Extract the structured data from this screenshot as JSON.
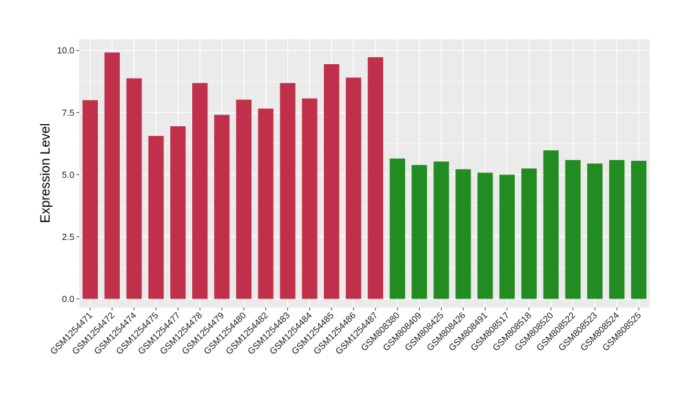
{
  "chart_data": {
    "type": "bar",
    "ylabel": "Expression Level",
    "xlabel": "",
    "ylim": [
      -0.35,
      10.45
    ],
    "yticks": [
      0.0,
      2.5,
      5.0,
      7.5,
      10.0
    ],
    "ytick_labels": [
      "0.0",
      "2.5",
      "5.0",
      "7.5",
      "10.0"
    ],
    "grid": true,
    "legend": "none",
    "colors": {
      "group_a": "#c0304a",
      "group_b": "#228b22",
      "panel": "#ebebeb",
      "grid": "#ffffff"
    },
    "categories": [
      "GSM1254471",
      "GSM1254472",
      "GSM1254474",
      "GSM1254475",
      "GSM1254477",
      "GSM1254478",
      "GSM1254479",
      "GSM1254480",
      "GSM1254482",
      "GSM1254483",
      "GSM1254484",
      "GSM1254485",
      "GSM1254486",
      "GSM1254487",
      "GSM808380",
      "GSM808409",
      "GSM808425",
      "GSM808426",
      "GSM808491",
      "GSM808517",
      "GSM808518",
      "GSM808520",
      "GSM808522",
      "GSM808523",
      "GSM808524",
      "GSM808525"
    ],
    "values": [
      8.0,
      9.92,
      8.88,
      6.56,
      6.95,
      8.69,
      7.41,
      8.02,
      7.66,
      8.69,
      8.07,
      9.45,
      8.91,
      9.73,
      5.65,
      5.39,
      5.53,
      5.22,
      5.08,
      5.0,
      5.25,
      5.98,
      5.59,
      5.45,
      5.59,
      5.56
    ],
    "bar_groups": [
      "group_a",
      "group_a",
      "group_a",
      "group_a",
      "group_a",
      "group_a",
      "group_a",
      "group_a",
      "group_a",
      "group_a",
      "group_a",
      "group_a",
      "group_a",
      "group_a",
      "group_b",
      "group_b",
      "group_b",
      "group_b",
      "group_b",
      "group_b",
      "group_b",
      "group_b",
      "group_b",
      "group_b",
      "group_b",
      "group_b"
    ]
  }
}
